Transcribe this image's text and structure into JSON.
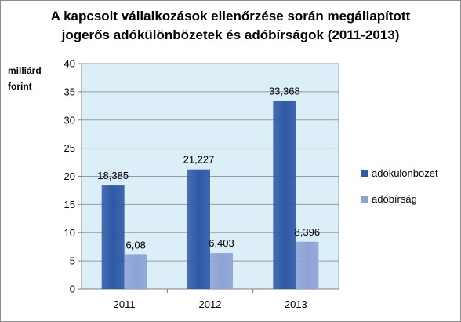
{
  "chart_data": {
    "type": "bar",
    "title_line1": "A kapcsolt vállalkozások ellenőrzése során megállapított",
    "title_line2": "jogerős adókülönbözetek és adóbírságok (2011-2013)",
    "ylabel_line1": "milliárd",
    "ylabel_line2": "forint",
    "categories": [
      "2011",
      "2012",
      "2013"
    ],
    "series": [
      {
        "name": "adókülönbözet",
        "values": [
          18.385,
          21.227,
          33.368
        ],
        "labels": [
          "18,385",
          "21,227",
          "33,368"
        ],
        "color": "#2d59a6"
      },
      {
        "name": "adóbírság",
        "values": [
          6.08,
          6.403,
          8.396
        ],
        "labels": [
          "6,08",
          "6,403",
          "8,396"
        ],
        "color": "#8da3d6"
      }
    ],
    "ylim": [
      0,
      40
    ],
    "yticks": [
      0,
      5,
      10,
      15,
      20,
      25,
      30,
      35,
      40
    ],
    "grid": true,
    "plot_background": "#dceff8",
    "legend_position": "right"
  }
}
